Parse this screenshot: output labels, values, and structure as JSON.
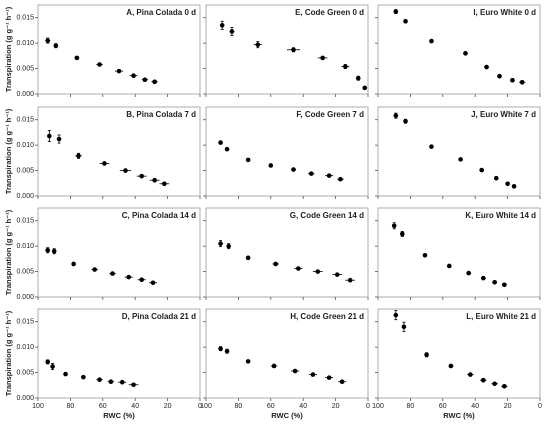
{
  "chart_data": [
    {
      "type": "scatter",
      "title": "A, Pina Colada 0 d",
      "y_label": "Transpiration (g g⁻¹ h⁻¹)",
      "color": "#000000",
      "x": [
        94,
        89,
        76,
        62,
        50,
        41,
        34,
        28
      ],
      "values": [
        0.0105,
        0.0095,
        0.0071,
        0.0058,
        0.0045,
        0.0036,
        0.0028,
        0.0024
      ],
      "errors": [
        0.0005,
        0.0004,
        0.0003,
        0.0003,
        0.0003,
        0.0003,
        0.0003,
        0.0003
      ],
      "x_errors": [
        1.5,
        1,
        1.5,
        2,
        2.5,
        2.5,
        2,
        2
      ],
      "xlim": [
        100,
        0
      ],
      "ylim": [
        0,
        0.0175
      ],
      "xticks": [
        100,
        80,
        60,
        40,
        20,
        0
      ],
      "yticks": [
        {
          "value": 0,
          "label": "0.000"
        },
        0.005,
        {
          "value": 0.01,
          "label": "0.010"
        },
        0.015
      ]
    },
    {
      "type": "scatter",
      "title": "E, Code Green 0 d",
      "color": "#000000",
      "x": [
        90,
        84,
        68,
        46,
        28,
        14,
        6,
        2
      ],
      "values": [
        0.0135,
        0.0123,
        0.0097,
        0.0087,
        0.0071,
        0.0054,
        0.0031,
        0.0012
      ],
      "errors": [
        0.0008,
        0.0008,
        0.0006,
        0.0004,
        0.0003,
        0.0004,
        0.0004,
        0.0003
      ],
      "x_errors": [
        1,
        1.5,
        2.5,
        4,
        3,
        2.5,
        1,
        0.5
      ],
      "xlim": [
        100,
        0
      ],
      "ylim": [
        0,
        0.0175
      ],
      "xticks": [
        100,
        80,
        60,
        40,
        20,
        0
      ],
      "yticks": [
        {
          "value": 0,
          "label": "0.000"
        },
        0.005,
        {
          "value": 0.01,
          "label": "0.010"
        },
        0.015
      ]
    },
    {
      "type": "scatter",
      "title": "I, Euro White 0 d",
      "color": "#000000",
      "x": [
        89,
        83,
        67,
        46,
        33,
        25,
        17,
        11
      ],
      "values": [
        0.0162,
        0.0143,
        0.0104,
        0.008,
        0.0053,
        0.0035,
        0.0027,
        0.0023
      ],
      "errors": [
        0.0004,
        0.0003,
        0.0003,
        0.0003,
        0.0003,
        0.0003,
        0.0003,
        0.0003
      ],
      "x_errors": [
        1,
        1,
        1,
        1.5,
        1.5,
        1.5,
        1.5,
        2
      ],
      "xlim": [
        100,
        0
      ],
      "ylim": [
        0,
        0.0175
      ],
      "xticks": [
        100,
        80,
        60,
        40,
        20,
        0
      ],
      "yticks": [
        {
          "value": 0,
          "label": "0.000"
        },
        0.005,
        {
          "value": 0.01,
          "label": "0.010"
        },
        0.015
      ]
    },
    {
      "type": "scatter",
      "title": "B, Pina Colada 7 d",
      "y_label": "Transpiration (g g⁻¹ h⁻¹)",
      "color": "#000000",
      "x": [
        93,
        87,
        75,
        59,
        46,
        36,
        28,
        22
      ],
      "values": [
        0.0118,
        0.0112,
        0.0079,
        0.0064,
        0.005,
        0.0039,
        0.0031,
        0.0024
      ],
      "errors": [
        0.0011,
        0.0008,
        0.0005,
        0.0003,
        0.0003,
        0.0003,
        0.0003,
        0.0003
      ],
      "x_errors": [
        1,
        1,
        2,
        3,
        3.5,
        3,
        3,
        3
      ],
      "xlim": [
        100,
        0
      ],
      "ylim": [
        0,
        0.0175
      ],
      "xticks": [
        100,
        80,
        60,
        40,
        20,
        0
      ],
      "yticks": [
        {
          "value": 0,
          "label": "0.000"
        },
        0.005,
        {
          "value": 0.01,
          "label": "0.010"
        },
        0.015
      ]
    },
    {
      "type": "scatter",
      "title": "F, Code Green 7 d",
      "color": "#000000",
      "x": [
        91,
        87,
        74,
        60,
        46,
        35,
        24,
        17
      ],
      "values": [
        0.0105,
        0.0092,
        0.0071,
        0.006,
        0.0052,
        0.0044,
        0.004,
        0.0033
      ],
      "errors": [
        0.0003,
        0.0002,
        0.0002,
        0.0002,
        0.0002,
        0.0002,
        0.0002,
        0.0002
      ],
      "x_errors": [
        1,
        1,
        1,
        1,
        1.5,
        2,
        2.5,
        2
      ],
      "xlim": [
        100,
        0
      ],
      "ylim": [
        0,
        0.0175
      ],
      "xticks": [
        100,
        80,
        60,
        40,
        20,
        0
      ],
      "yticks": [
        {
          "value": 0,
          "label": "0.000"
        },
        0.005,
        {
          "value": 0.01,
          "label": "0.010"
        },
        0.015
      ]
    },
    {
      "type": "scatter",
      "title": "J, Euro White 7 d",
      "color": "#000000",
      "x": [
        89,
        83,
        67,
        49,
        36,
        27,
        20,
        16
      ],
      "values": [
        0.0158,
        0.0147,
        0.0097,
        0.0072,
        0.0051,
        0.0035,
        0.0024,
        0.0019
      ],
      "errors": [
        0.0005,
        0.0004,
        0.0002,
        0.0002,
        0.0002,
        0.0002,
        0.0002,
        0.0002
      ],
      "x_errors": [
        1,
        1,
        1,
        1,
        1,
        1,
        1,
        1
      ],
      "xlim": [
        100,
        0
      ],
      "ylim": [
        0,
        0.0175
      ],
      "xticks": [
        100,
        80,
        60,
        40,
        20,
        0
      ],
      "yticks": [
        {
          "value": 0,
          "label": "0.000"
        },
        0.005,
        {
          "value": 0.01,
          "label": "0.010"
        },
        0.015
      ]
    },
    {
      "type": "scatter",
      "title": "C, Pina Colada 14 d",
      "y_label": "Transpiration (g g⁻¹ h⁻¹)",
      "color": "#000000",
      "x": [
        94,
        90,
        78,
        65,
        54,
        44,
        36,
        29
      ],
      "values": [
        0.0092,
        0.009,
        0.0065,
        0.0054,
        0.0046,
        0.0039,
        0.0034,
        0.0028
      ],
      "errors": [
        0.0005,
        0.0005,
        0.0002,
        0.0002,
        0.0002,
        0.0002,
        0.0002,
        0.0002
      ],
      "x_errors": [
        1.5,
        1,
        1,
        2,
        2,
        2.5,
        2.5,
        2.5
      ],
      "xlim": [
        100,
        0
      ],
      "ylim": [
        0,
        0.0175
      ],
      "xticks": [
        100,
        80,
        60,
        40,
        20,
        0
      ],
      "yticks": [
        {
          "value": 0,
          "label": "0.000"
        },
        0.005,
        {
          "value": 0.01,
          "label": "0.010"
        },
        0.015
      ]
    },
    {
      "type": "scatter",
      "title": "G, Code Green 14 d",
      "color": "#000000",
      "x": [
        91,
        86,
        74,
        57,
        43,
        31,
        19,
        11
      ],
      "values": [
        0.0105,
        0.01,
        0.0077,
        0.0065,
        0.0056,
        0.005,
        0.0044,
        0.0033
      ],
      "errors": [
        0.0006,
        0.0005,
        0.0003,
        0.0003,
        0.0002,
        0.0002,
        0.0002,
        0.0002
      ],
      "x_errors": [
        1,
        1,
        1,
        2,
        2.5,
        3,
        3,
        3
      ],
      "xlim": [
        100,
        0
      ],
      "ylim": [
        0,
        0.0175
      ],
      "xticks": [
        100,
        80,
        60,
        40,
        20,
        0
      ],
      "yticks": [
        {
          "value": 0,
          "label": "0.000"
        },
        0.005,
        {
          "value": 0.01,
          "label": "0.010"
        },
        0.015
      ]
    },
    {
      "type": "scatter",
      "title": "K, Euro White 14 d",
      "color": "#000000",
      "x": [
        90,
        85,
        71,
        56,
        44,
        35,
        28,
        22
      ],
      "values": [
        0.014,
        0.0124,
        0.0082,
        0.0061,
        0.0047,
        0.0037,
        0.0029,
        0.0024
      ],
      "errors": [
        0.0006,
        0.0005,
        0.0002,
        0.0002,
        0.0002,
        0.0002,
        0.0002,
        0.0002
      ],
      "x_errors": [
        1,
        1,
        1,
        1.5,
        1.5,
        1.5,
        1.5,
        1.5
      ],
      "xlim": [
        100,
        0
      ],
      "ylim": [
        0,
        0.0175
      ],
      "xticks": [
        100,
        80,
        60,
        40,
        20,
        0
      ],
      "yticks": [
        {
          "value": 0,
          "label": "0.000"
        },
        0.005,
        {
          "value": 0.01,
          "label": "0.010"
        },
        0.015
      ]
    },
    {
      "type": "scatter",
      "title": "D, Pina Colada 21 d",
      "y_label": "Transpiration (g g⁻¹ h⁻¹)",
      "x_label": "RWC (%)",
      "color": "#000000",
      "x": [
        94,
        91,
        83,
        72,
        62,
        55,
        48,
        41
      ],
      "values": [
        0.0071,
        0.0062,
        0.0047,
        0.0041,
        0.0036,
        0.0032,
        0.0031,
        0.0026
      ],
      "errors": [
        0.0004,
        0.0006,
        0.0002,
        0.0002,
        0.0002,
        0.0002,
        0.0002,
        0.0002
      ],
      "x_errors": [
        1,
        1,
        1,
        1.5,
        2,
        2,
        2.5,
        3
      ],
      "xlim": [
        100,
        0
      ],
      "ylim": [
        0,
        0.0175
      ],
      "xticks": [
        100,
        80,
        60,
        40,
        20,
        0
      ],
      "yticks": [
        {
          "value": 0,
          "label": "0.000"
        },
        0.005,
        {
          "value": 0.01,
          "label": "0.010"
        },
        0.015
      ]
    },
    {
      "type": "scatter",
      "title": "H, Code Green 21 d",
      "x_label": "RWC (%)",
      "color": "#000000",
      "x": [
        91,
        87,
        74,
        58,
        45,
        34,
        24,
        16
      ],
      "values": [
        0.0097,
        0.0092,
        0.0072,
        0.0063,
        0.0053,
        0.0046,
        0.004,
        0.0032
      ],
      "errors": [
        0.0004,
        0.0004,
        0.0002,
        0.0002,
        0.0002,
        0.0002,
        0.0002,
        0.0002
      ],
      "x_errors": [
        1,
        1,
        1,
        2,
        2.5,
        2.5,
        2.5,
        2.5
      ],
      "xlim": [
        100,
        0
      ],
      "ylim": [
        0,
        0.0175
      ],
      "xticks": [
        100,
        80,
        60,
        40,
        20,
        0
      ],
      "yticks": [
        {
          "value": 0,
          "label": "0.000"
        },
        0.005,
        {
          "value": 0.01,
          "label": "0.010"
        },
        0.015
      ]
    },
    {
      "type": "scatter",
      "title": "L, Euro White 21 d",
      "x_label": "RWC (%)",
      "color": "#000000",
      "x": [
        89,
        84,
        70,
        55,
        43,
        35,
        28,
        22
      ],
      "values": [
        0.0163,
        0.014,
        0.0085,
        0.0063,
        0.0046,
        0.0035,
        0.0028,
        0.0023
      ],
      "errors": [
        0.0009,
        0.0009,
        0.0004,
        0.0003,
        0.0002,
        0.0003,
        0.0002,
        0.0002
      ],
      "x_errors": [
        1,
        1,
        1,
        1.5,
        2,
        2,
        2,
        2
      ],
      "xlim": [
        100,
        0
      ],
      "ylim": [
        0,
        0.0175
      ],
      "xticks": [
        100,
        80,
        60,
        40,
        20,
        0
      ],
      "yticks": [
        {
          "value": 0,
          "label": "0.000"
        },
        0.005,
        {
          "value": 0.01,
          "label": "0.010"
        },
        0.015
      ]
    }
  ]
}
